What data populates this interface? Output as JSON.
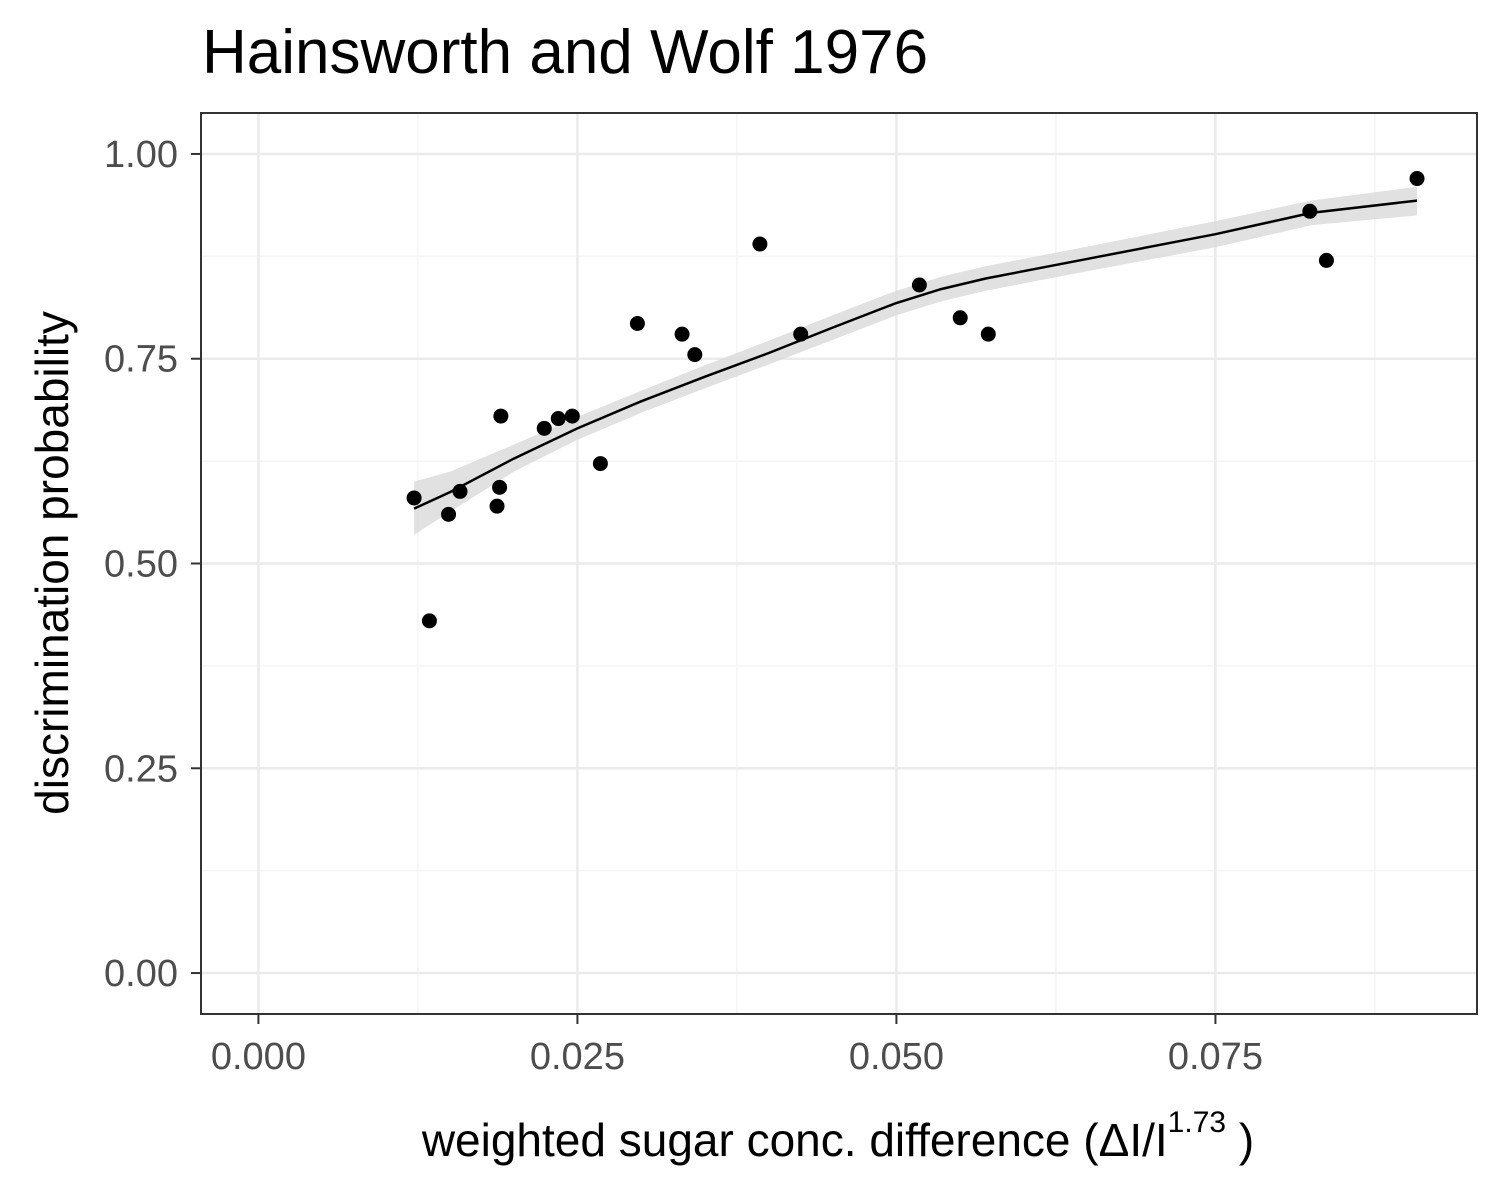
{
  "chart_data": {
    "type": "scatter",
    "title": "Hainsworth and Wolf 1976",
    "xlabel": {
      "main": "weighted  sugar conc.  difference (ΔI/I",
      "superscript": "1.73",
      "close": " )"
    },
    "ylabel": "discrimination probability",
    "xlim": [
      -0.0045,
      0.0955
    ],
    "ylim": [
      -0.05,
      1.05
    ],
    "x_ticks": [
      0.0,
      0.025,
      0.05,
      0.075
    ],
    "x_tick_labels": [
      "0.000",
      "0.025",
      "0.050",
      "0.075"
    ],
    "y_ticks": [
      0.0,
      0.25,
      0.5,
      0.75,
      1.0
    ],
    "y_tick_labels": [
      "0.00",
      "0.25",
      "0.50",
      "0.75",
      "1.00"
    ],
    "x_minor_ticks": [
      0.0125,
      0.0375,
      0.0625,
      0.0875
    ],
    "y_minor_ticks": [
      0.125,
      0.375,
      0.625,
      0.875
    ],
    "grid": true,
    "points": {
      "x": [
        0.0122,
        0.0134,
        0.0149,
        0.0158,
        0.0187,
        0.0189,
        0.019,
        0.0224,
        0.0235,
        0.0246,
        0.0268,
        0.0297,
        0.0332,
        0.0342,
        0.0393,
        0.0425,
        0.0518,
        0.055,
        0.0572,
        0.0824,
        0.0837,
        0.0908
      ],
      "y": [
        0.58,
        0.43,
        0.56,
        0.588,
        0.57,
        0.593,
        0.68,
        0.665,
        0.677,
        0.68,
        0.622,
        0.793,
        0.78,
        0.755,
        0.89,
        0.78,
        0.84,
        0.8,
        0.78,
        0.93,
        0.87,
        0.97
      ]
    },
    "fit": {
      "x": [
        0.0122,
        0.015,
        0.02,
        0.025,
        0.03,
        0.035,
        0.04,
        0.045,
        0.05,
        0.0535,
        0.057,
        0.065,
        0.075,
        0.0825,
        0.0908
      ],
      "y": [
        0.567,
        0.587,
        0.628,
        0.665,
        0.698,
        0.728,
        0.757,
        0.788,
        0.818,
        0.835,
        0.848,
        0.872,
        0.902,
        0.928,
        0.943
      ],
      "lower": [
        0.535,
        0.563,
        0.612,
        0.651,
        0.684,
        0.714,
        0.743,
        0.773,
        0.803,
        0.82,
        0.833,
        0.857,
        0.886,
        0.913,
        0.925
      ],
      "upper": [
        0.6,
        0.612,
        0.645,
        0.679,
        0.711,
        0.742,
        0.772,
        0.803,
        0.833,
        0.85,
        0.863,
        0.887,
        0.918,
        0.943,
        0.96
      ]
    },
    "colors": {
      "points": "#000000",
      "fit_line": "#000000",
      "ribbon": "#d9d9d9",
      "grid_major": "#ebebeb",
      "grid_minor": "#f5f5f5",
      "panel_border": "#333333",
      "tick_label": "#4d4d4d"
    }
  }
}
